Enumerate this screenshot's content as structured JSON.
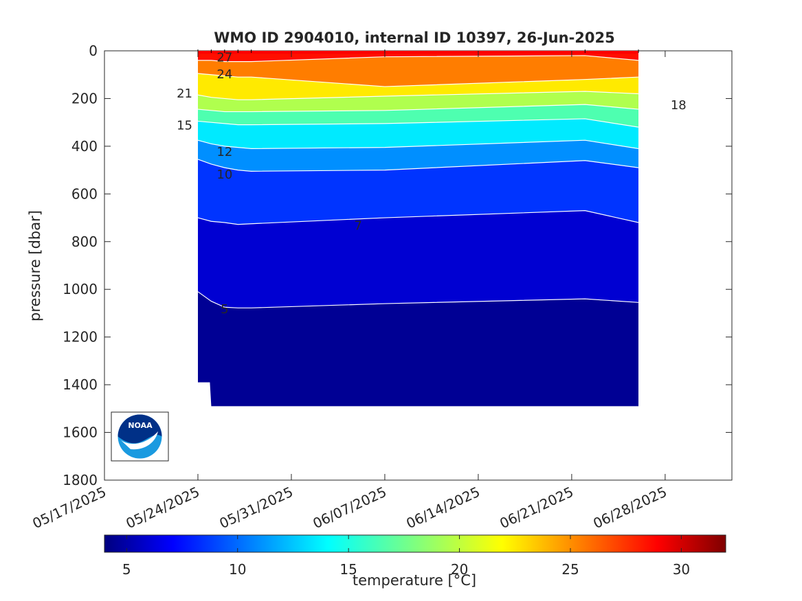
{
  "chart_data": {
    "type": "heatmap",
    "title": "WMO ID 2904010, internal ID 10397, 26-Jun-2025",
    "ylabel": "pressure [dbar]",
    "xlabel": "",
    "y_reversed": true,
    "ylim": [
      0,
      1800
    ],
    "yticks": [
      0,
      200,
      400,
      600,
      800,
      1000,
      1200,
      1400,
      1600,
      1800
    ],
    "xlim": [
      "2025-05-17",
      "2025-07-03"
    ],
    "xticks": [
      "05/17/2025",
      "05/24/2025",
      "05/31/2025",
      "06/07/2025",
      "06/14/2025",
      "06/21/2025",
      "06/28/2025"
    ],
    "colormap": "jet",
    "colorbar": {
      "label": "temperature [°C]",
      "range": [
        4,
        32
      ],
      "ticks": [
        5,
        10,
        15,
        20,
        25,
        30
      ]
    },
    "profile_dates": [
      "2025-05-24",
      "2025-05-25",
      "2025-05-26",
      "2025-05-27",
      "2025-05-28",
      "2025-06-07",
      "2025-06-22",
      "2025-06-26"
    ],
    "bottom_depth": [
      1390,
      1490,
      1490,
      1490,
      1490,
      1490,
      1490,
      1490
    ],
    "isotherms": [
      {
        "value": 5,
        "depth": [
          1010,
          1050,
          1075,
          1078,
          1078,
          1060,
          1040,
          1055
        ]
      },
      {
        "value": 7,
        "depth": [
          700,
          715,
          720,
          728,
          725,
          700,
          670,
          720
        ]
      },
      {
        "value": 10,
        "depth": [
          455,
          475,
          490,
          500,
          505,
          500,
          460,
          490
        ]
      },
      {
        "value": 12,
        "depth": [
          375,
          390,
          400,
          405,
          410,
          405,
          375,
          410
        ]
      },
      {
        "value": 15,
        "depth": [
          295,
          300,
          305,
          310,
          310,
          305,
          285,
          320
        ]
      },
      {
        "value": 18,
        "depth": [
          245,
          250,
          255,
          255,
          255,
          250,
          225,
          245
        ]
      },
      {
        "value": 21,
        "depth": [
          185,
          195,
          200,
          205,
          205,
          190,
          170,
          180
        ]
      },
      {
        "value": 24,
        "depth": [
          95,
          100,
          105,
          110,
          110,
          150,
          120,
          110
        ]
      },
      {
        "value": 27,
        "depth": [
          40,
          40,
          45,
          45,
          45,
          25,
          20,
          40
        ]
      }
    ],
    "contour_labels": [
      {
        "text": "27",
        "date": "2025-05-26",
        "depth": 25
      },
      {
        "text": "24",
        "date": "2025-05-26",
        "depth": 95
      },
      {
        "text": "21",
        "date": "2025-05-23",
        "depth": 175
      },
      {
        "text": "18",
        "date": "2025-06-29",
        "depth": 225
      },
      {
        "text": "15",
        "date": "2025-05-23",
        "depth": 310
      },
      {
        "text": "12",
        "date": "2025-05-26",
        "depth": 420
      },
      {
        "text": "10",
        "date": "2025-05-26",
        "depth": 515
      },
      {
        "text": "7",
        "date": "2025-06-05",
        "depth": 730
      },
      {
        "text": "5",
        "date": "2025-05-26",
        "depth": 1080
      }
    ],
    "logo_text": "NOAA"
  }
}
